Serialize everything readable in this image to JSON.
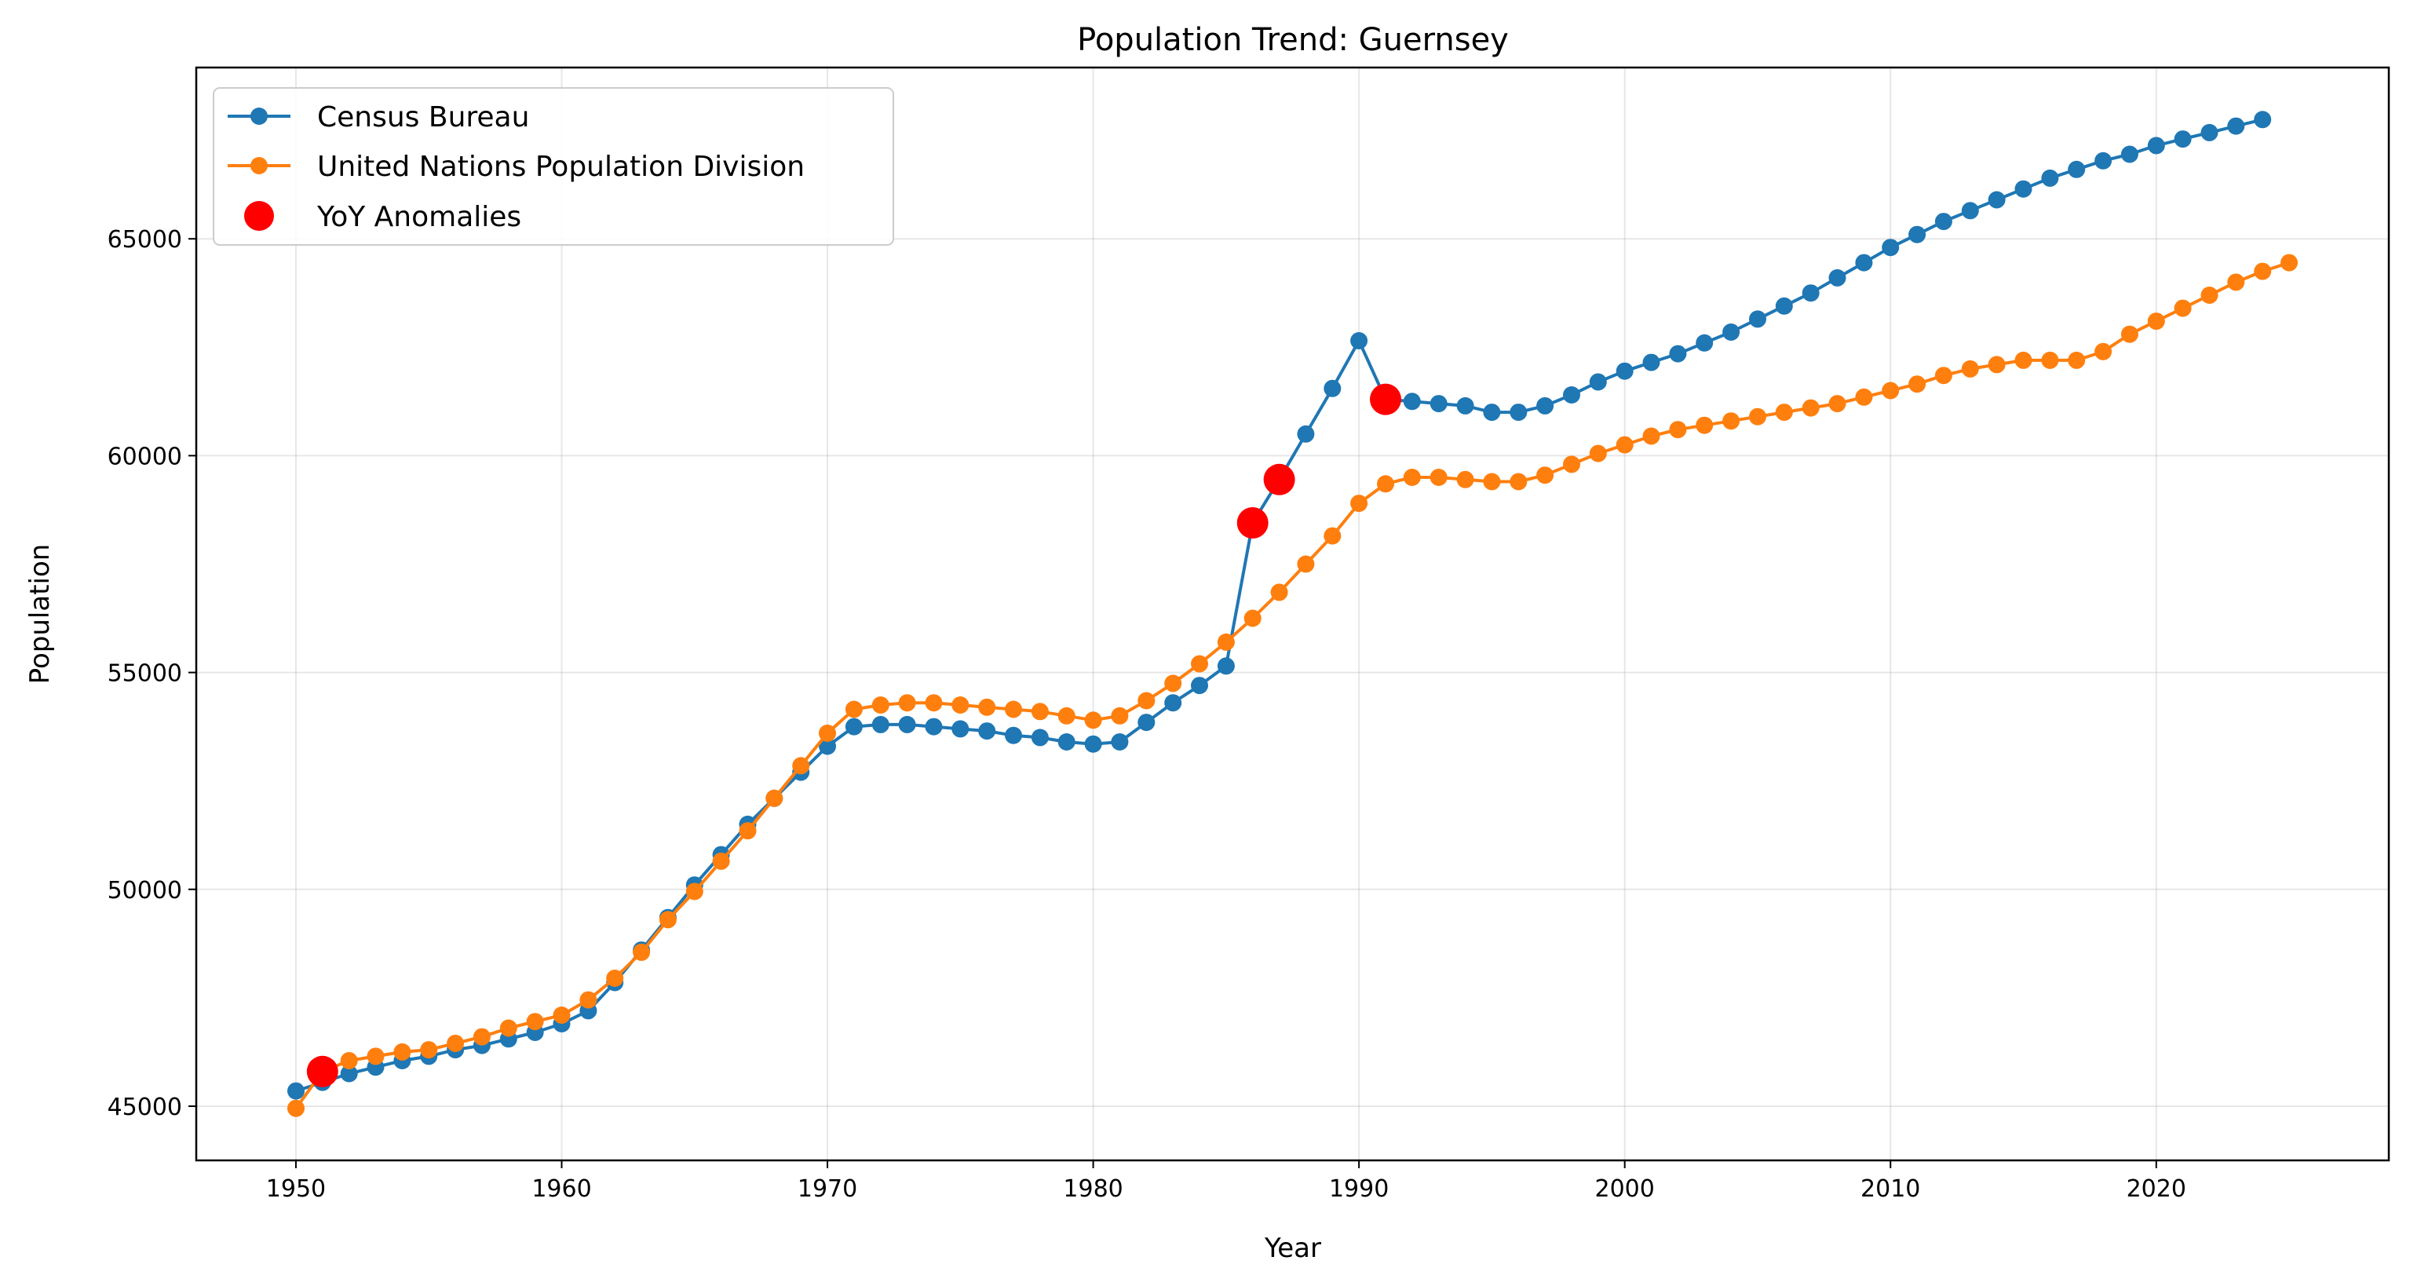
{
  "chart_data": {
    "type": "line",
    "title": "Population Trend: Guernsey",
    "xlabel": "Year",
    "ylabel": "Population",
    "xlim": [
      1946.25,
      2028.75
    ],
    "ylim": [
      43750,
      68950
    ],
    "xticks": [
      1950,
      1960,
      1970,
      1980,
      1990,
      2000,
      2010,
      2020
    ],
    "yticks": [
      45000,
      50000,
      55000,
      60000,
      65000
    ],
    "grid": true,
    "legend_position": "top-left",
    "series": [
      {
        "name": "Census Bureau",
        "color": "#1f77b4",
        "marker": "circle",
        "points": [
          [
            1950,
            45350
          ],
          [
            1951,
            45550
          ],
          [
            1952,
            45750
          ],
          [
            1953,
            45900
          ],
          [
            1954,
            46050
          ],
          [
            1955,
            46150
          ],
          [
            1956,
            46300
          ],
          [
            1957,
            46400
          ],
          [
            1958,
            46550
          ],
          [
            1959,
            46700
          ],
          [
            1960,
            46900
          ],
          [
            1961,
            47200
          ],
          [
            1962,
            47850
          ],
          [
            1963,
            48600
          ],
          [
            1964,
            49350
          ],
          [
            1965,
            50100
          ],
          [
            1966,
            50800
          ],
          [
            1967,
            51500
          ],
          [
            1968,
            52100
          ],
          [
            1969,
            52700
          ],
          [
            1970,
            53300
          ],
          [
            1971,
            53750
          ],
          [
            1972,
            53800
          ],
          [
            1973,
            53800
          ],
          [
            1974,
            53750
          ],
          [
            1975,
            53700
          ],
          [
            1976,
            53650
          ],
          [
            1977,
            53550
          ],
          [
            1978,
            53500
          ],
          [
            1979,
            53400
          ],
          [
            1980,
            53350
          ],
          [
            1981,
            53400
          ],
          [
            1982,
            53850
          ],
          [
            1983,
            54300
          ],
          [
            1984,
            54700
          ],
          [
            1985,
            55150
          ],
          [
            1986,
            58450
          ],
          [
            1987,
            59450
          ],
          [
            1988,
            60500
          ],
          [
            1989,
            61550
          ],
          [
            1990,
            62650
          ],
          [
            1991,
            61300
          ],
          [
            1992,
            61250
          ],
          [
            1993,
            61200
          ],
          [
            1994,
            61150
          ],
          [
            1995,
            61000
          ],
          [
            1996,
            61000
          ],
          [
            1997,
            61150
          ],
          [
            1998,
            61400
          ],
          [
            1999,
            61700
          ],
          [
            2000,
            61950
          ],
          [
            2001,
            62150
          ],
          [
            2002,
            62350
          ],
          [
            2003,
            62600
          ],
          [
            2004,
            62850
          ],
          [
            2005,
            63150
          ],
          [
            2006,
            63450
          ],
          [
            2007,
            63750
          ],
          [
            2008,
            64100
          ],
          [
            2009,
            64450
          ],
          [
            2010,
            64800
          ],
          [
            2011,
            65100
          ],
          [
            2012,
            65400
          ],
          [
            2013,
            65650
          ],
          [
            2014,
            65900
          ],
          [
            2015,
            66150
          ],
          [
            2016,
            66400
          ],
          [
            2017,
            66600
          ],
          [
            2018,
            66800
          ],
          [
            2019,
            66950
          ],
          [
            2020,
            67150
          ],
          [
            2021,
            67300
          ],
          [
            2022,
            67450
          ],
          [
            2023,
            67600
          ],
          [
            2024,
            67750
          ]
        ]
      },
      {
        "name": "United Nations Population Division",
        "color": "#ff7f0e",
        "marker": "circle",
        "points": [
          [
            1950,
            44950
          ],
          [
            1951,
            45800
          ],
          [
            1952,
            46050
          ],
          [
            1953,
            46150
          ],
          [
            1954,
            46250
          ],
          [
            1955,
            46300
          ],
          [
            1956,
            46450
          ],
          [
            1957,
            46600
          ],
          [
            1958,
            46800
          ],
          [
            1959,
            46950
          ],
          [
            1960,
            47100
          ],
          [
            1961,
            47450
          ],
          [
            1962,
            47950
          ],
          [
            1963,
            48550
          ],
          [
            1964,
            49300
          ],
          [
            1965,
            49950
          ],
          [
            1966,
            50650
          ],
          [
            1967,
            51350
          ],
          [
            1968,
            52100
          ],
          [
            1969,
            52850
          ],
          [
            1970,
            53600
          ],
          [
            1971,
            54150
          ],
          [
            1972,
            54250
          ],
          [
            1973,
            54300
          ],
          [
            1974,
            54300
          ],
          [
            1975,
            54250
          ],
          [
            1976,
            54200
          ],
          [
            1977,
            54150
          ],
          [
            1978,
            54100
          ],
          [
            1979,
            54000
          ],
          [
            1980,
            53900
          ],
          [
            1981,
            54000
          ],
          [
            1982,
            54350
          ],
          [
            1983,
            54750
          ],
          [
            1984,
            55200
          ],
          [
            1985,
            55700
          ],
          [
            1986,
            56250
          ],
          [
            1987,
            56850
          ],
          [
            1988,
            57500
          ],
          [
            1989,
            58150
          ],
          [
            1990,
            58900
          ],
          [
            1991,
            59350
          ],
          [
            1992,
            59500
          ],
          [
            1993,
            59500
          ],
          [
            1994,
            59450
          ],
          [
            1995,
            59400
          ],
          [
            1996,
            59400
          ],
          [
            1997,
            59550
          ],
          [
            1998,
            59800
          ],
          [
            1999,
            60050
          ],
          [
            2000,
            60250
          ],
          [
            2001,
            60450
          ],
          [
            2002,
            60600
          ],
          [
            2003,
            60700
          ],
          [
            2004,
            60800
          ],
          [
            2005,
            60900
          ],
          [
            2006,
            61000
          ],
          [
            2007,
            61100
          ],
          [
            2008,
            61200
          ],
          [
            2009,
            61350
          ],
          [
            2010,
            61500
          ],
          [
            2011,
            61650
          ],
          [
            2012,
            61850
          ],
          [
            2013,
            62000
          ],
          [
            2014,
            62100
          ],
          [
            2015,
            62200
          ],
          [
            2016,
            62200
          ],
          [
            2017,
            62200
          ],
          [
            2018,
            62400
          ],
          [
            2019,
            62800
          ],
          [
            2020,
            63100
          ],
          [
            2021,
            63400
          ],
          [
            2022,
            63700
          ],
          [
            2023,
            64000
          ],
          [
            2024,
            64250
          ],
          [
            2025,
            64450
          ]
        ]
      }
    ],
    "anomalies": {
      "name": "YoY Anomalies",
      "color": "#ff0000",
      "points": [
        [
          1951,
          45800
        ],
        [
          1986,
          58450
        ],
        [
          1987,
          59450
        ],
        [
          1991,
          61300
        ]
      ]
    }
  }
}
